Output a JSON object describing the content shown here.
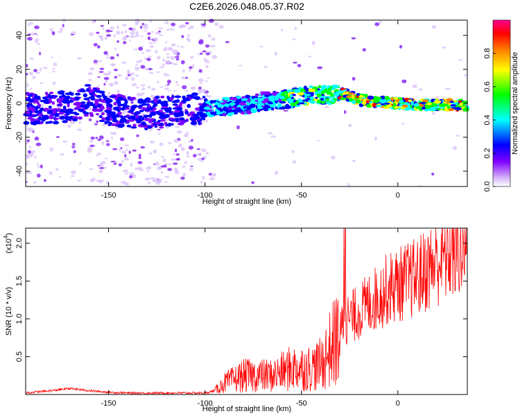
{
  "figure_title": "C2E6.2026.048.05.37.R02",
  "chart_data": [
    {
      "type": "heatmap",
      "title": "",
      "xlabel": "Height of straight line (km)",
      "ylabel": "Frequency (Hz)",
      "xlim": [
        -193,
        36
      ],
      "ylim": [
        -49,
        49
      ],
      "xticks": [
        -150,
        -100,
        -50,
        0
      ],
      "yticks": [
        -40,
        -20,
        0,
        20,
        40
      ],
      "colorbar": {
        "label": "Normalized spectral amplitude",
        "range": [
          0,
          1
        ],
        "ticks": [
          0.0,
          0.2,
          0.4,
          0.6,
          0.8
        ],
        "colormap": [
          "#ffffff",
          "#d8b8f8",
          "#8000ff",
          "#0000ff",
          "#00ffff",
          "#00ff00",
          "#ffff00",
          "#ff8000",
          "#ff0000",
          "#ff00a0"
        ]
      },
      "ridge": {
        "x": [
          -185,
          -170,
          -160,
          -150,
          -140,
          -130,
          -120,
          -110,
          -100,
          -90,
          -80,
          -70,
          -60,
          -50,
          -45,
          -40,
          -35,
          -30,
          -25,
          -20,
          -10,
          0,
          10,
          20,
          30,
          36
        ],
        "freq": [
          -3,
          -2,
          2,
          -4,
          -5,
          -6,
          -5,
          -4,
          -3,
          -2,
          -1,
          1,
          2,
          4,
          5,
          5,
          5,
          6,
          4,
          2,
          1,
          0,
          -1,
          -1,
          -1,
          -1
        ]
      }
    },
    {
      "type": "line",
      "title": "",
      "xlabel": "Height of straight line (km)",
      "ylabel": "SNR (10 * v/v)",
      "yscale_label": "(x10",
      "yscale_exp": "4",
      "xlim": [
        -193,
        36
      ],
      "ylim": [
        0,
        2.2
      ],
      "xticks": [
        -150,
        -100,
        -50,
        0
      ],
      "yticks": [
        0.5,
        1.0,
        1.5,
        2.0
      ],
      "series": [
        {
          "color": "#ff0000",
          "x": [
            -193,
            -180,
            -170,
            -160,
            -150,
            -140,
            -130,
            -120,
            -110,
            -100,
            -95,
            -90,
            -85,
            -80,
            -75,
            -70,
            -65,
            -60,
            -55,
            -50,
            -45,
            -40,
            -35,
            -30,
            -28,
            -25,
            -20,
            -15,
            -10,
            -5,
            0,
            5,
            10,
            15,
            20,
            25,
            30,
            36
          ],
          "y": [
            0.02,
            0.05,
            0.08,
            0.05,
            0.03,
            0.02,
            0.02,
            0.02,
            0.02,
            0.02,
            0.05,
            0.15,
            0.2,
            0.25,
            0.25,
            0.25,
            0.25,
            0.3,
            0.35,
            0.35,
            0.35,
            0.4,
            0.6,
            0.8,
            1.0,
            1.0,
            1.1,
            1.2,
            1.3,
            1.4,
            1.45,
            1.5,
            1.55,
            1.65,
            1.75,
            1.85,
            1.9,
            1.95
          ]
        }
      ]
    }
  ]
}
